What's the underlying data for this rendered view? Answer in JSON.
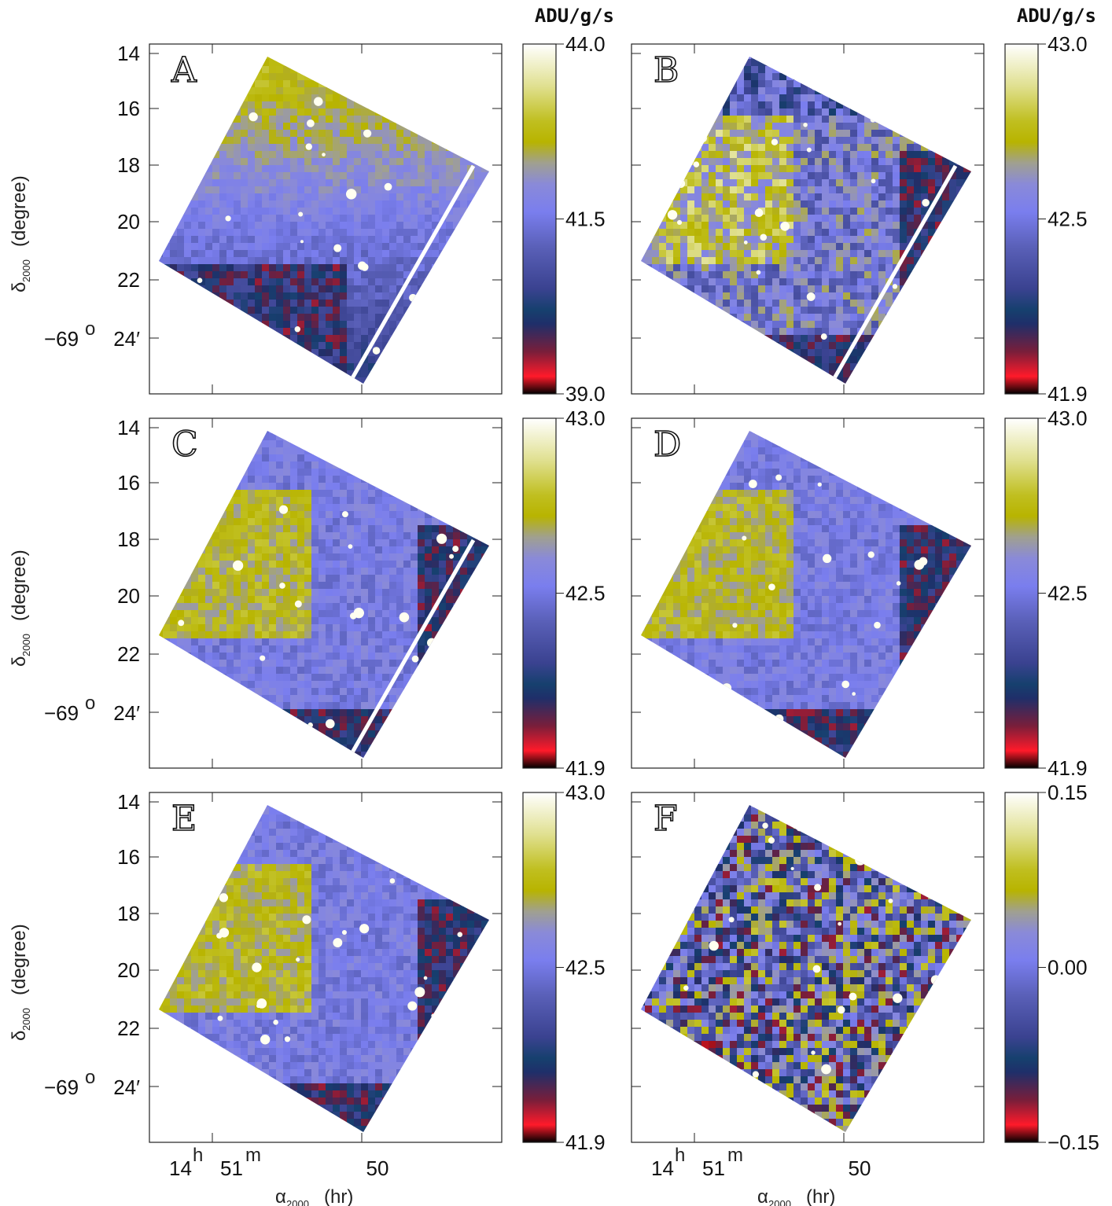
{
  "figure": {
    "panels": [
      {
        "letter": "A",
        "cbar_ticks": [
          "44.0",
          "41.5",
          "39.0"
        ],
        "unit": "ADU/g/s",
        "stripe": true,
        "style": "gradient"
      },
      {
        "letter": "B",
        "cbar_ticks": [
          "43.0",
          "42.5",
          "41.9"
        ],
        "unit": "ADU/g/s",
        "stripe": true,
        "style": "noisy"
      },
      {
        "letter": "C",
        "cbar_ticks": [
          "43.0",
          "42.5",
          "41.9"
        ],
        "unit": "",
        "stripe": true,
        "style": "smooth"
      },
      {
        "letter": "D",
        "cbar_ticks": [
          "43.0",
          "42.5",
          "41.9"
        ],
        "unit": "",
        "stripe": false,
        "style": "smooth"
      },
      {
        "letter": "E",
        "cbar_ticks": [
          "43.0",
          "42.5",
          "41.9"
        ],
        "unit": "",
        "stripe": false,
        "style": "smooth"
      },
      {
        "letter": "F",
        "cbar_ticks": [
          "0.15",
          "0.00",
          "−0.15"
        ],
        "unit": "",
        "stripe": false,
        "style": "residual"
      }
    ],
    "y_ticks": [
      "14",
      "16",
      "18",
      "20",
      "22"
    ],
    "y_origin_deg": "−69",
    "y_origin_deg_sup": "o",
    "y_origin_min": "24′",
    "y_axis_label_main": "δ",
    "y_axis_label_sub": "2000",
    "y_axis_label_unit": "(degree)",
    "x_tick_hour": "14",
    "x_tick_hour_sup": "h",
    "x_tick_min": "51",
    "x_tick_min_sup": "m",
    "x_tick_right": "50",
    "x_axis_label_main": "α",
    "x_axis_label_sub": "2000",
    "x_axis_label_unit": "(hr)"
  },
  "colormap": {
    "stops": [
      "#000000",
      "#ff1a2a",
      "#7a1e3a",
      "#1f2f6a",
      "#16406e",
      "#3a4290",
      "#5a60b8",
      "#7a7eee",
      "#8a8ad8",
      "#a0a090",
      "#b8b400",
      "#c0bf20",
      "#e0e090",
      "#ffffff"
    ]
  }
}
